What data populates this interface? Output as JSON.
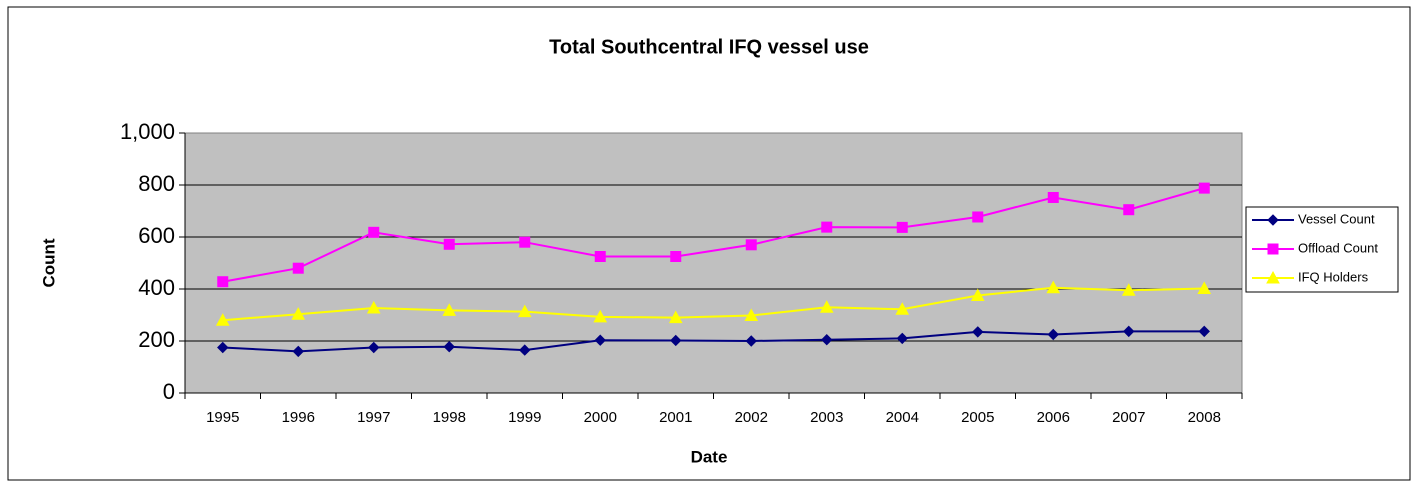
{
  "chart_data": {
    "type": "line",
    "title": "Total Southcentral IFQ vessel use",
    "x_label": "Date",
    "y_label": "Count",
    "categories": [
      "1995",
      "1996",
      "1997",
      "1998",
      "1999",
      "2000",
      "2001",
      "2002",
      "2003",
      "2004",
      "2005",
      "2006",
      "2007",
      "2008"
    ],
    "series": [
      {
        "name": "Vessel Count",
        "color": "#000080",
        "marker": "diamond",
        "values": [
          175,
          160,
          175,
          178,
          165,
          203,
          202,
          200,
          205,
          210,
          235,
          225,
          237,
          237
        ]
      },
      {
        "name": "Offload Count",
        "color": "#ff00ff",
        "marker": "square",
        "values": [
          428,
          480,
          618,
          572,
          580,
          525,
          525,
          570,
          638,
          637,
          677,
          752,
          705,
          788
        ]
      },
      {
        "name": "IFQ Holders",
        "color": "#ffff00",
        "marker": "triangle",
        "values": [
          280,
          303,
          327,
          318,
          313,
          293,
          290,
          298,
          330,
          322,
          375,
          405,
          395,
          402
        ]
      }
    ],
    "ylim": [
      0,
      1000
    ],
    "yticks": [
      0,
      200,
      400,
      600,
      800,
      {
        "value": 1000,
        "label": "1,000"
      }
    ],
    "grid": true
  }
}
